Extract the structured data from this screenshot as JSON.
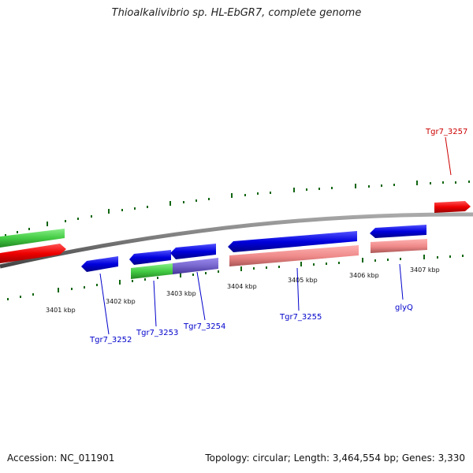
{
  "title": "Thioalkalivibrio sp. HL-EbGR7, complete genome",
  "footer": {
    "accession": "Accession: NC_011901",
    "summary": "Topology: circular; Length: 3,464,554 bp; Genes: 3,330"
  },
  "scale_labels": [
    "3401 kbp",
    "3402 kbp",
    "3403 kbp",
    "3404 kbp",
    "3405 kbp",
    "3406 kbp",
    "3407 kbp"
  ],
  "gene_labels": {
    "tgr7_3252": "Tgr7_3252",
    "tgr7_3253": "Tgr7_3253",
    "tgr7_3254": "Tgr7_3254",
    "tgr7_3255": "Tgr7_3255",
    "glyq": "glyQ",
    "tgr7_3257": "Tgr7_3257"
  },
  "colors": {
    "forward_gene": "#ee0000",
    "reverse_gene": "#0000dd",
    "rna_gene": "#44cc44",
    "pseudo_gene": "#ee8888",
    "purple_gene": "#7766cc",
    "backbone": "#777777",
    "tick": "#116611"
  }
}
